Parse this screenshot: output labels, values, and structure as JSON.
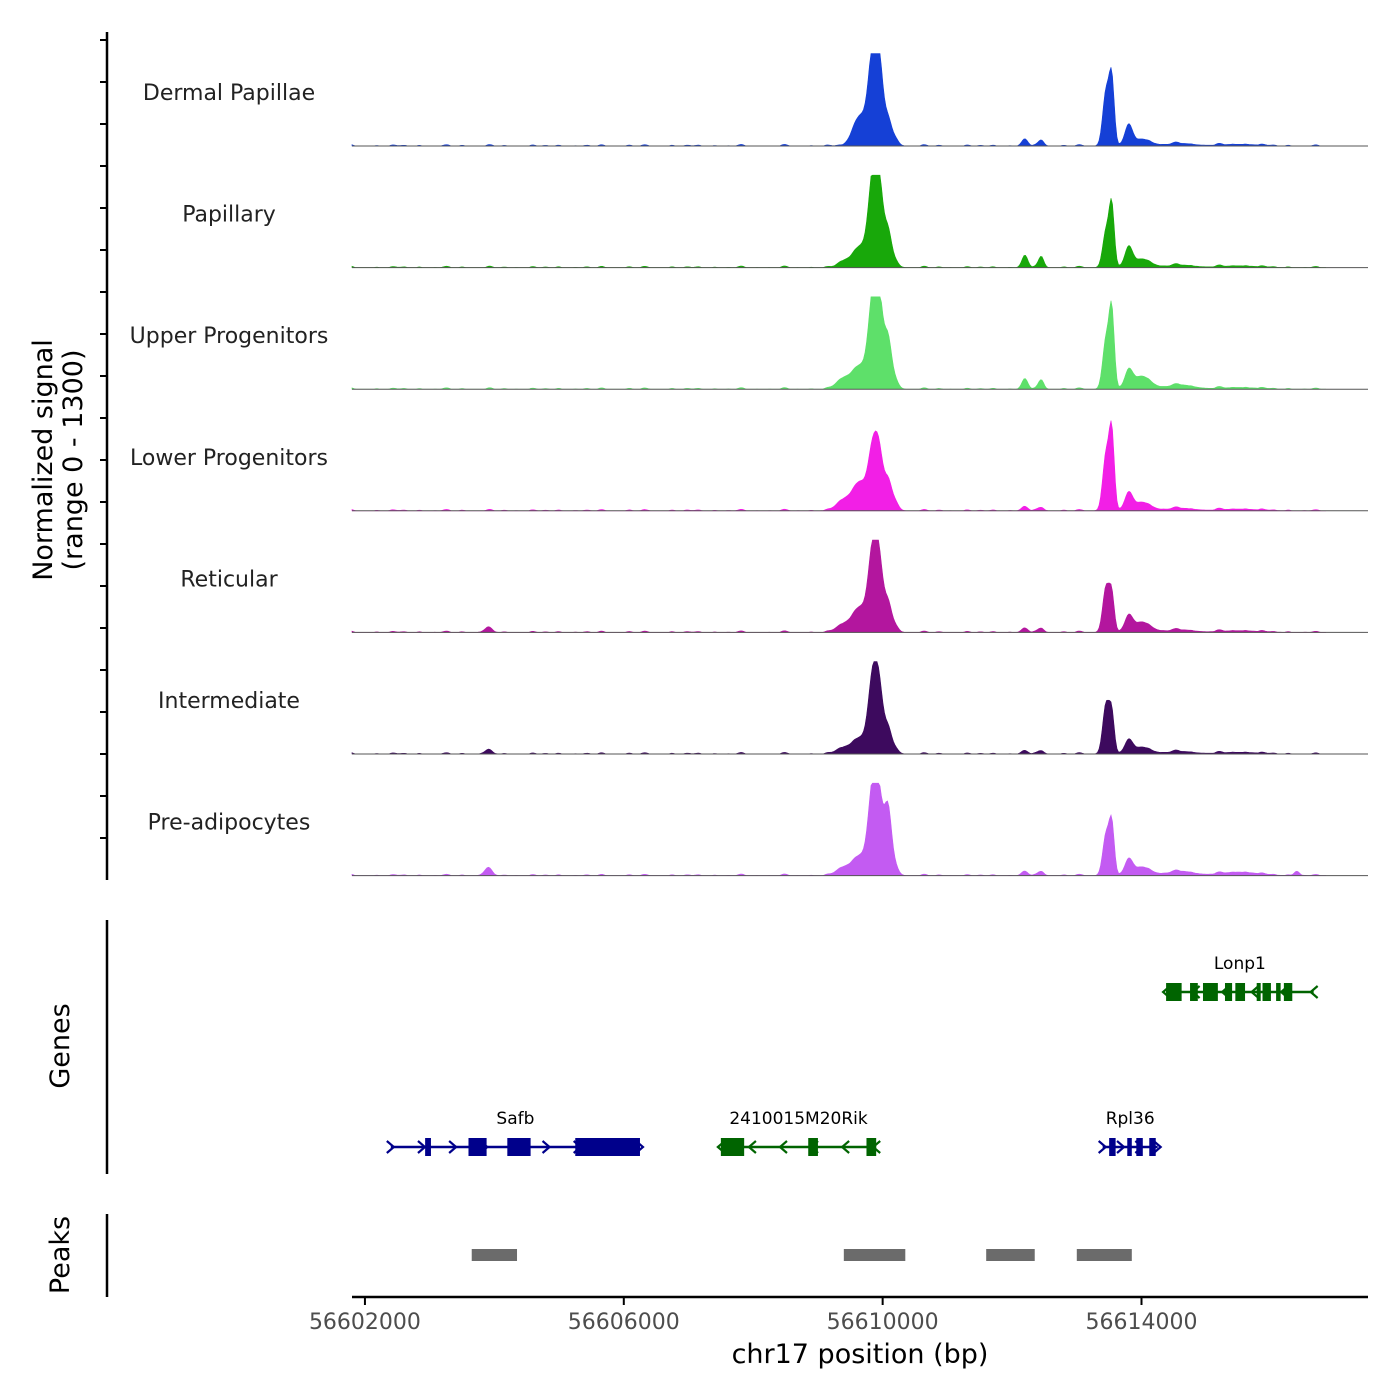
{
  "chart_data": {
    "type": "area",
    "title": "",
    "xlabel": "chr17 position (bp)",
    "ylabel_line1": "Normalized signal",
    "ylabel_line2": "(range 0 - 1300)",
    "xlim": [
      56601800,
      56617500
    ],
    "ylim": [
      0,
      1300
    ],
    "x_ticks": [
      56602000,
      56606000,
      56610000,
      56614000
    ],
    "x_tick_labels": [
      "56602000",
      "56606000",
      "56610000",
      "56614000"
    ],
    "tracks": [
      {
        "name": "Dermal Papillae",
        "color": "#1540d6",
        "peaks": [
          [
            56609650,
            0.34,
            110
          ],
          [
            56609850,
            1.0,
            70
          ],
          [
            56609950,
            0.75,
            60
          ],
          [
            56610080,
            0.28,
            55
          ],
          [
            56610180,
            0.08,
            60
          ],
          [
            56612200,
            0.08,
            45
          ],
          [
            56612450,
            0.07,
            40
          ],
          [
            56613450,
            0.6,
            50
          ],
          [
            56613540,
            0.75,
            40
          ],
          [
            56613800,
            0.22,
            55
          ],
          [
            56614000,
            0.08,
            140
          ],
          [
            56614600,
            0.03,
            200
          ],
          [
            56615500,
            0.02,
            300
          ]
        ]
      },
      {
        "name": "Papillary",
        "color": "#18a80a",
        "peaks": [
          [
            56609400,
            0.07,
            90
          ],
          [
            56609650,
            0.24,
            110
          ],
          [
            56609850,
            0.98,
            70
          ],
          [
            56609950,
            0.75,
            60
          ],
          [
            56610080,
            0.4,
            55
          ],
          [
            56610180,
            0.07,
            60
          ],
          [
            56612200,
            0.14,
            45
          ],
          [
            56612450,
            0.13,
            40
          ],
          [
            56613450,
            0.4,
            50
          ],
          [
            56613540,
            0.7,
            40
          ],
          [
            56613800,
            0.21,
            55
          ],
          [
            56614000,
            0.1,
            140
          ],
          [
            56614600,
            0.03,
            200
          ],
          [
            56615500,
            0.02,
            300
          ]
        ]
      },
      {
        "name": "Upper Progenitors",
        "color": "#5ee06a",
        "peaks": [
          [
            56609400,
            0.12,
            110
          ],
          [
            56609650,
            0.26,
            110
          ],
          [
            56609850,
            0.98,
            70
          ],
          [
            56609950,
            0.8,
            60
          ],
          [
            56610080,
            0.55,
            55
          ],
          [
            56610180,
            0.1,
            60
          ],
          [
            56612200,
            0.12,
            45
          ],
          [
            56612450,
            0.11,
            40
          ],
          [
            56613450,
            0.55,
            50
          ],
          [
            56613540,
            0.88,
            40
          ],
          [
            56613800,
            0.18,
            55
          ],
          [
            56614000,
            0.15,
            140
          ],
          [
            56614600,
            0.05,
            200
          ],
          [
            56615500,
            0.02,
            300
          ]
        ]
      },
      {
        "name": "Lower Progenitors",
        "color": "#f21fe6",
        "peaks": [
          [
            56609400,
            0.12,
            110
          ],
          [
            56609650,
            0.32,
            110
          ],
          [
            56609850,
            0.66,
            70
          ],
          [
            56609950,
            0.52,
            60
          ],
          [
            56610080,
            0.32,
            55
          ],
          [
            56610180,
            0.1,
            60
          ],
          [
            56612200,
            0.05,
            45
          ],
          [
            56612450,
            0.04,
            40
          ],
          [
            56613450,
            0.62,
            50
          ],
          [
            56613540,
            0.88,
            40
          ],
          [
            56613800,
            0.18,
            55
          ],
          [
            56614000,
            0.1,
            140
          ],
          [
            56614600,
            0.03,
            200
          ],
          [
            56615500,
            0.02,
            300
          ]
        ]
      },
      {
        "name": "Reticular",
        "color": "#b3169e",
        "peaks": [
          [
            56603900,
            0.05,
            60
          ],
          [
            56609400,
            0.09,
            110
          ],
          [
            56609650,
            0.28,
            110
          ],
          [
            56609850,
            0.9,
            70
          ],
          [
            56609950,
            0.62,
            60
          ],
          [
            56610080,
            0.32,
            55
          ],
          [
            56610180,
            0.07,
            60
          ],
          [
            56612200,
            0.05,
            45
          ],
          [
            56612450,
            0.05,
            40
          ],
          [
            56613450,
            0.5,
            50
          ],
          [
            56613540,
            0.42,
            40
          ],
          [
            56613800,
            0.16,
            55
          ],
          [
            56614000,
            0.12,
            140
          ],
          [
            56614600,
            0.03,
            200
          ],
          [
            56615500,
            0.02,
            300
          ]
        ]
      },
      {
        "name": "Intermediate",
        "color": "#3d0a5e",
        "peaks": [
          [
            56603900,
            0.04,
            60
          ],
          [
            56609400,
            0.07,
            110
          ],
          [
            56609650,
            0.18,
            110
          ],
          [
            56609850,
            0.85,
            70
          ],
          [
            56609950,
            0.58,
            60
          ],
          [
            56610080,
            0.28,
            55
          ],
          [
            56610180,
            0.06,
            60
          ],
          [
            56612200,
            0.04,
            45
          ],
          [
            56612450,
            0.04,
            40
          ],
          [
            56613450,
            0.55,
            50
          ],
          [
            56613540,
            0.45,
            40
          ],
          [
            56613800,
            0.14,
            55
          ],
          [
            56614000,
            0.08,
            140
          ],
          [
            56614600,
            0.03,
            200
          ],
          [
            56615500,
            0.02,
            300
          ]
        ]
      },
      {
        "name": "Pre-adipocytes",
        "color": "#c35bf2",
        "peaks": [
          [
            56603900,
            0.08,
            60
          ],
          [
            56609400,
            0.09,
            110
          ],
          [
            56609650,
            0.22,
            110
          ],
          [
            56609850,
            0.98,
            70
          ],
          [
            56609950,
            0.65,
            60
          ],
          [
            56610080,
            0.75,
            55
          ],
          [
            56610180,
            0.1,
            60
          ],
          [
            56612200,
            0.05,
            45
          ],
          [
            56612450,
            0.05,
            40
          ],
          [
            56613450,
            0.45,
            50
          ],
          [
            56613540,
            0.58,
            40
          ],
          [
            56613800,
            0.16,
            55
          ],
          [
            56614000,
            0.1,
            140
          ],
          [
            56614600,
            0.05,
            200
          ],
          [
            56615500,
            0.04,
            300
          ],
          [
            56616400,
            0.05,
            40
          ]
        ]
      }
    ],
    "genes": {
      "label": "Genes",
      "items": [
        {
          "name": "Safb",
          "strand": "+",
          "color": "#00008b",
          "row": 2,
          "start": 56602400,
          "end": 56606250,
          "exons": [
            [
              56602930,
              56603020
            ],
            [
              56603600,
              56603880
            ],
            [
              56604200,
              56604560
            ],
            [
              56605250,
              56606250
            ]
          ]
        },
        {
          "name": "2410015M20Rik",
          "strand": "-",
          "color": "#006400",
          "row": 2,
          "start": 56607500,
          "end": 56609900,
          "exons": [
            [
              56607500,
              56607860
            ],
            [
              56608850,
              56609000
            ],
            [
              56609750,
              56609900
            ]
          ]
        },
        {
          "name": "Rpl36",
          "strand": "+",
          "color": "#00008b",
          "row": 2,
          "start": 56613400,
          "end": 56614250,
          "exons": [
            [
              56613500,
              56613600
            ],
            [
              56613780,
              56613850
            ],
            [
              56613920,
              56614020
            ],
            [
              56614120,
              56614220
            ]
          ]
        },
        {
          "name": "Lonp1",
          "strand": "-",
          "color": "#006400",
          "row": 1,
          "start": 56614380,
          "end": 56616660,
          "exons": [
            [
              56614380,
              56614620
            ],
            [
              56614750,
              56614870
            ],
            [
              56614950,
              56615180
            ],
            [
              56615290,
              56615400
            ],
            [
              56615450,
              56615600
            ],
            [
              56615780,
              56615830
            ],
            [
              56615870,
              56616000
            ],
            [
              56616080,
              56616150
            ],
            [
              56616200,
              56616330
            ]
          ]
        }
      ]
    },
    "peaks_track": {
      "label": "Peaks",
      "color": "#6b6b6b",
      "regions": [
        [
          56603650,
          56604350
        ],
        [
          56609400,
          56610350
        ],
        [
          56611600,
          56612350
        ],
        [
          56613000,
          56613850
        ]
      ]
    }
  }
}
